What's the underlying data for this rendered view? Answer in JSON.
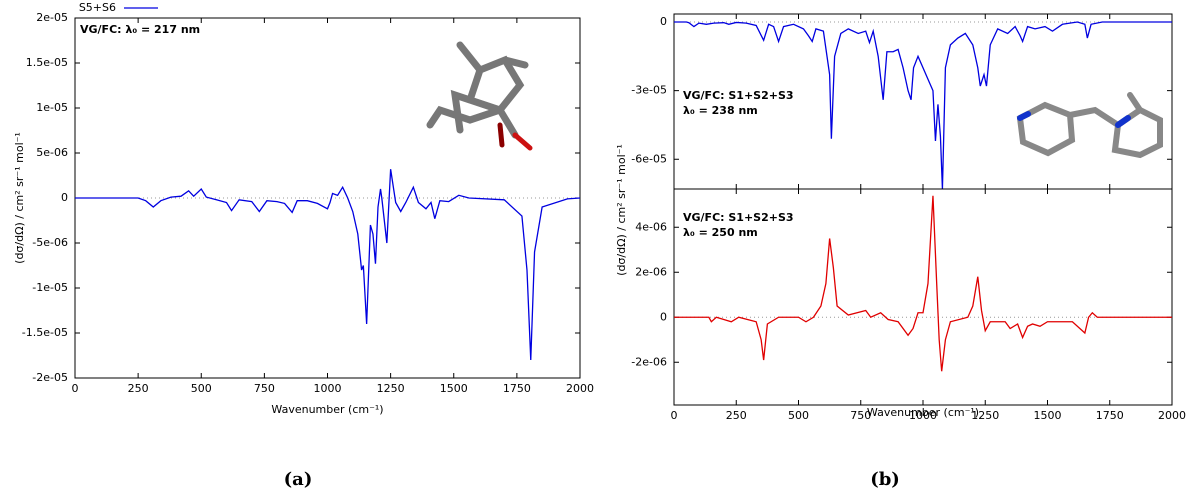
{
  "panel_labels": [
    "(a)",
    "(b)"
  ],
  "chart_data": [
    {
      "type": "line",
      "y_label": "(dσ/dΩ) / cm² sr⁻¹ mol⁻¹",
      "x_label": "Wavenumber (cm⁻¹)",
      "annotations": [
        "VG/FC: λ₀ = 217 nm"
      ],
      "xlim": [
        0,
        2000
      ],
      "xticks": [
        0,
        250,
        500,
        750,
        1000,
        1250,
        1500,
        1750,
        2000
      ],
      "ylim": [
        -2e-05,
        2e-05
      ],
      "yticks": [
        {
          "value": -2e-05,
          "label": "-2e-05"
        },
        {
          "value": -1.5e-05,
          "label": "-1.5e-05"
        },
        {
          "value": -1e-05,
          "label": "-1e-05"
        },
        {
          "value": -5e-06,
          "label": "-5e-06"
        },
        0,
        {
          "value": 5e-06,
          "label": "5e-06"
        },
        {
          "value": 1e-05,
          "label": "1e-05"
        },
        {
          "value": 1.5e-05,
          "label": "1.5e-05"
        },
        {
          "value": 2e-05,
          "label": "2e-05"
        }
      ],
      "x": [
        0,
        150,
        250,
        280,
        310,
        340,
        380,
        420,
        450,
        470,
        500,
        520,
        560,
        600,
        620,
        650,
        700,
        730,
        760,
        800,
        830,
        860,
        880,
        920,
        960,
        1000,
        1010,
        1020,
        1040,
        1060,
        1080,
        1100,
        1120,
        1135,
        1142,
        1155,
        1170,
        1180,
        1190,
        1200,
        1210,
        1215,
        1235,
        1250,
        1270,
        1290,
        1310,
        1340,
        1360,
        1390,
        1410,
        1425,
        1445,
        1480,
        1520,
        1560,
        1700,
        1770,
        1790,
        1805,
        1820,
        1850,
        1950,
        2000
      ],
      "series": [
        {
          "name": "S5+S6",
          "color": "#0000e0",
          "values": [
            0,
            0,
            0,
            -3e-07,
            -1e-06,
            -3e-07,
            1e-07,
            2e-07,
            8e-07,
            2e-07,
            1e-06,
            1e-07,
            -2e-07,
            -5e-07,
            -1.4e-06,
            -2e-07,
            -4e-07,
            -1.5e-06,
            -3e-07,
            -4e-07,
            -6e-07,
            -1.6e-06,
            -3e-07,
            -3e-07,
            -6e-07,
            -1.2e-06,
            -5e-07,
            5e-07,
            3e-07,
            1.2e-06,
            0,
            -1.5e-06,
            -4e-06,
            -8e-06,
            -7.5e-06,
            -1.4e-05,
            -3e-06,
            -4e-06,
            -7.3e-06,
            -1e-06,
            1e-06,
            0,
            -5e-06,
            3.2e-06,
            -5e-07,
            -1.5e-06,
            -5e-07,
            1.2e-06,
            -5e-07,
            -1.2e-06,
            -5e-07,
            -2.3e-06,
            -3e-07,
            -4e-07,
            3e-07,
            0,
            -2e-07,
            -2e-06,
            -8e-06,
            -1.8e-05,
            -6e-06,
            -1e-06,
            -1e-07,
            0
          ]
        }
      ]
    },
    {
      "type": "line",
      "y_label": "(dσ/dΩ) / cm² sr⁻¹ mol⁻¹",
      "annotations": [
        "VG/FC: S1+S2+S3",
        "λ₀ = 238 nm"
      ],
      "xlim": [
        0,
        2000
      ],
      "xticks": [
        0,
        250,
        500,
        750,
        1000,
        1250,
        1500,
        1750,
        2000
      ],
      "ylim": [
        -7.3e-05,
        3.5e-06
      ],
      "yticks": [
        {
          "value": -6e-05,
          "label": "-6e-05"
        },
        {
          "value": -3e-05,
          "label": "-3e-05"
        },
        0
      ],
      "x": [
        0,
        50,
        60,
        80,
        100,
        130,
        160,
        200,
        220,
        250,
        290,
        330,
        360,
        380,
        400,
        420,
        440,
        480,
        520,
        540,
        555,
        570,
        600,
        625,
        632,
        645,
        670,
        700,
        740,
        770,
        785,
        800,
        820,
        840,
        855,
        880,
        900,
        920,
        940,
        952,
        962,
        980,
        1000,
        1020,
        1040,
        1050,
        1060,
        1070,
        1078,
        1090,
        1110,
        1140,
        1170,
        1200,
        1220,
        1230,
        1245,
        1255,
        1270,
        1300,
        1340,
        1370,
        1390,
        1400,
        1420,
        1450,
        1490,
        1520,
        1560,
        1620,
        1650,
        1660,
        1675,
        1720,
        2000
      ],
      "series": [
        {
          "color": "#0000e0",
          "values": [
            0,
            0,
            -3e-07,
            -2e-06,
            -5e-07,
            -1e-06,
            -5e-07,
            -3e-07,
            -1e-06,
            -2e-07,
            -5e-07,
            -1.5e-06,
            -8e-06,
            -1e-06,
            -2e-06,
            -8.5e-06,
            -2e-06,
            -1e-06,
            -3e-06,
            -6e-06,
            -8.5e-06,
            -3e-06,
            -4e-06,
            -2.3e-05,
            -5.1e-05,
            -1.5e-05,
            -5e-06,
            -3e-06,
            -5e-06,
            -4e-06,
            -9e-06,
            -4e-06,
            -1.5e-05,
            -3.4e-05,
            -1.3e-05,
            -1.3e-05,
            -1.2e-05,
            -2e-05,
            -3e-05,
            -3.4e-05,
            -2e-05,
            -1.5e-05,
            -2e-05,
            -2.5e-05,
            -3e-05,
            -5.2e-05,
            -3.6e-05,
            -5e-05,
            -7.3e-05,
            -2e-05,
            -1e-05,
            -7e-06,
            -5e-06,
            -1e-05,
            -2e-05,
            -2.8e-05,
            -2.3e-05,
            -2.8e-05,
            -1e-05,
            -3e-06,
            -5e-06,
            -2e-06,
            -6e-06,
            -8.5e-06,
            -2e-06,
            -3e-06,
            -2e-06,
            -4e-06,
            -1e-06,
            0,
            -1e-06,
            -7e-06,
            -1e-06,
            0,
            0
          ]
        }
      ]
    },
    {
      "type": "line",
      "x_label": "Wavenumber (cm⁻¹)",
      "annotations": [
        "VG/FC: S1+S2+S3",
        "λ₀ = 250 nm"
      ],
      "xlim": [
        0,
        2000
      ],
      "xticks": [
        0,
        250,
        500,
        750,
        1000,
        1250,
        1500,
        1750,
        2000
      ],
      "ylim": [
        -3.9e-06,
        5.7e-06
      ],
      "yticks": [
        {
          "value": -2e-06,
          "label": "-2e-06"
        },
        0,
        {
          "value": 2e-06,
          "label": "2e-06"
        },
        {
          "value": 4e-06,
          "label": "4e-06"
        }
      ],
      "x": [
        0,
        140,
        150,
        170,
        200,
        230,
        260,
        330,
        350,
        360,
        375,
        420,
        500,
        530,
        560,
        590,
        610,
        625,
        640,
        655,
        700,
        770,
        790,
        830,
        860,
        900,
        940,
        960,
        980,
        1000,
        1020,
        1040,
        1055,
        1065,
        1075,
        1090,
        1110,
        1180,
        1200,
        1220,
        1235,
        1250,
        1270,
        1330,
        1350,
        1380,
        1400,
        1420,
        1440,
        1470,
        1500,
        1600,
        1650,
        1665,
        1680,
        1700,
        2000
      ],
      "series": [
        {
          "color": "#e00000",
          "values": [
            0,
            0,
            -2e-07,
            0,
            -1e-07,
            -2e-07,
            0,
            -2e-07,
            -1e-06,
            -1.9e-06,
            -3e-07,
            0,
            0,
            -2e-07,
            0,
            5e-07,
            1.5e-06,
            3.5e-06,
            2.2e-06,
            5e-07,
            1e-07,
            3e-07,
            0,
            2e-07,
            -1e-07,
            -2e-07,
            -8e-07,
            -5e-07,
            2e-07,
            2e-07,
            1.5e-06,
            5.4e-06,
            1.5e-06,
            -1e-06,
            -2.4e-06,
            -1e-06,
            -2e-07,
            0,
            5e-07,
            1.8e-06,
            3e-07,
            -6e-07,
            -2e-07,
            -2e-07,
            -5e-07,
            -3e-07,
            -9e-07,
            -4e-07,
            -3e-07,
            -4e-07,
            -2e-07,
            -2e-07,
            -7e-07,
            0,
            2e-07,
            0,
            0
          ]
        }
      ]
    }
  ]
}
